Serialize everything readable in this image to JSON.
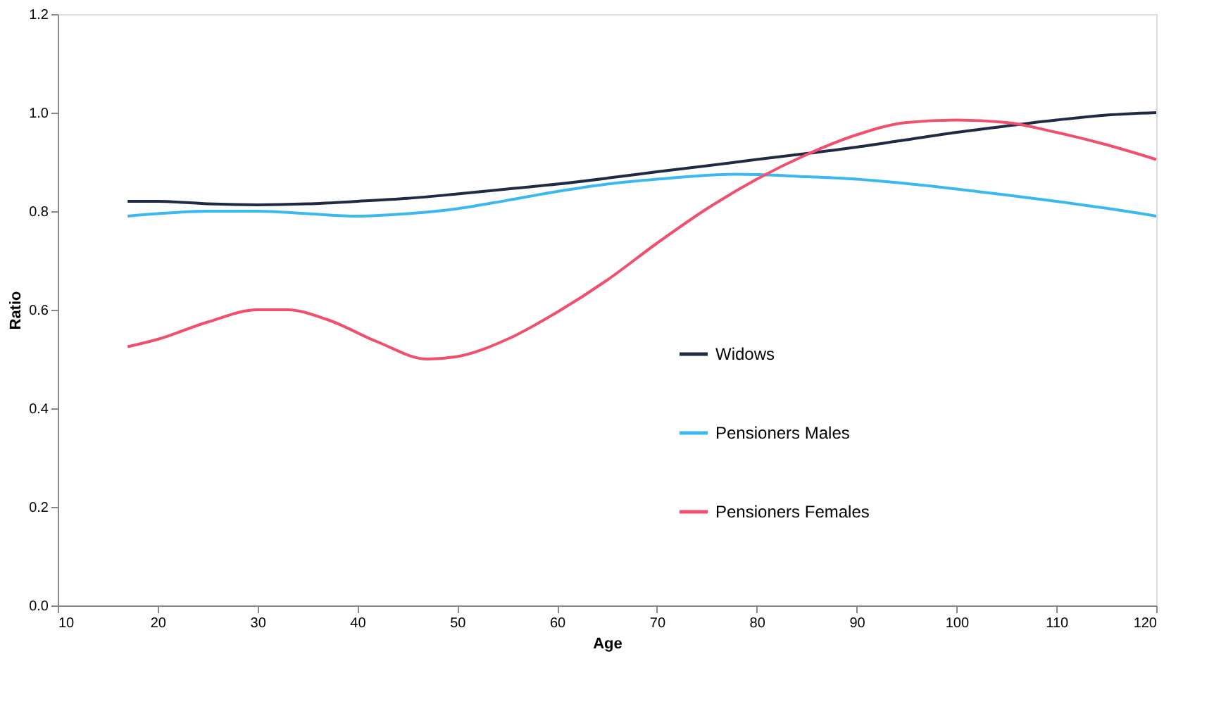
{
  "chart_data": {
    "type": "line",
    "xlabel": "Age",
    "ylabel": "Ratio",
    "xlim": [
      10,
      120
    ],
    "xticks": [
      10,
      20,
      30,
      40,
      50,
      60,
      70,
      80,
      90,
      100,
      110,
      120
    ],
    "ylim": [
      0,
      1.2
    ],
    "yticks": [
      {
        "value": 0,
        "label": "0.0"
      },
      {
        "value": 0.2,
        "label": "0.2"
      },
      {
        "value": 0.4,
        "label": "0.4"
      },
      {
        "value": 0.6,
        "label": "0.6"
      },
      {
        "value": 0.8,
        "label": "0.8"
      },
      {
        "value": 1,
        "label": "1.0"
      },
      {
        "value": 1.2,
        "label": "1.2"
      }
    ],
    "grid": false,
    "legend": "bottom right",
    "marker": "none",
    "line_style": "solid",
    "series": [
      {
        "name": "Widows",
        "color": "#1f2a44",
        "x": [
          17,
          20,
          25,
          30,
          35,
          40,
          45,
          50,
          55,
          60,
          65,
          70,
          75,
          80,
          85,
          90,
          95,
          100,
          105,
          110,
          115,
          120
        ],
        "values": [
          0.82,
          0.82,
          0.815,
          0.813,
          0.815,
          0.82,
          0.826,
          0.835,
          0.845,
          0.855,
          0.867,
          0.88,
          0.892,
          0.905,
          0.917,
          0.93,
          0.945,
          0.96,
          0.973,
          0.985,
          0.995,
          1.0
        ]
      },
      {
        "name": "Pensioners Males",
        "color": "#3cb8f0",
        "x": [
          17,
          20,
          25,
          30,
          35,
          40,
          45,
          50,
          55,
          60,
          65,
          70,
          78,
          85,
          90,
          95,
          100,
          105,
          110,
          115,
          120
        ],
        "values": [
          0.79,
          0.795,
          0.8,
          0.8,
          0.795,
          0.79,
          0.795,
          0.805,
          0.822,
          0.84,
          0.855,
          0.865,
          0.875,
          0.87,
          0.865,
          0.856,
          0.845,
          0.833,
          0.82,
          0.806,
          0.79
        ]
      },
      {
        "name": "Pensioners Females",
        "color": "#f0506e",
        "x": [
          17,
          20,
          25,
          30,
          33,
          37,
          42,
          47,
          50,
          55,
          60,
          65,
          70,
          75,
          80,
          85,
          90,
          95,
          100,
          105,
          110,
          115,
          120
        ],
        "values": [
          0.525,
          0.54,
          0.575,
          0.6,
          0.6,
          0.58,
          0.535,
          0.5,
          0.505,
          0.54,
          0.595,
          0.66,
          0.735,
          0.805,
          0.865,
          0.915,
          0.955,
          0.98,
          0.985,
          0.98,
          0.96,
          0.935,
          0.905
        ]
      }
    ]
  }
}
